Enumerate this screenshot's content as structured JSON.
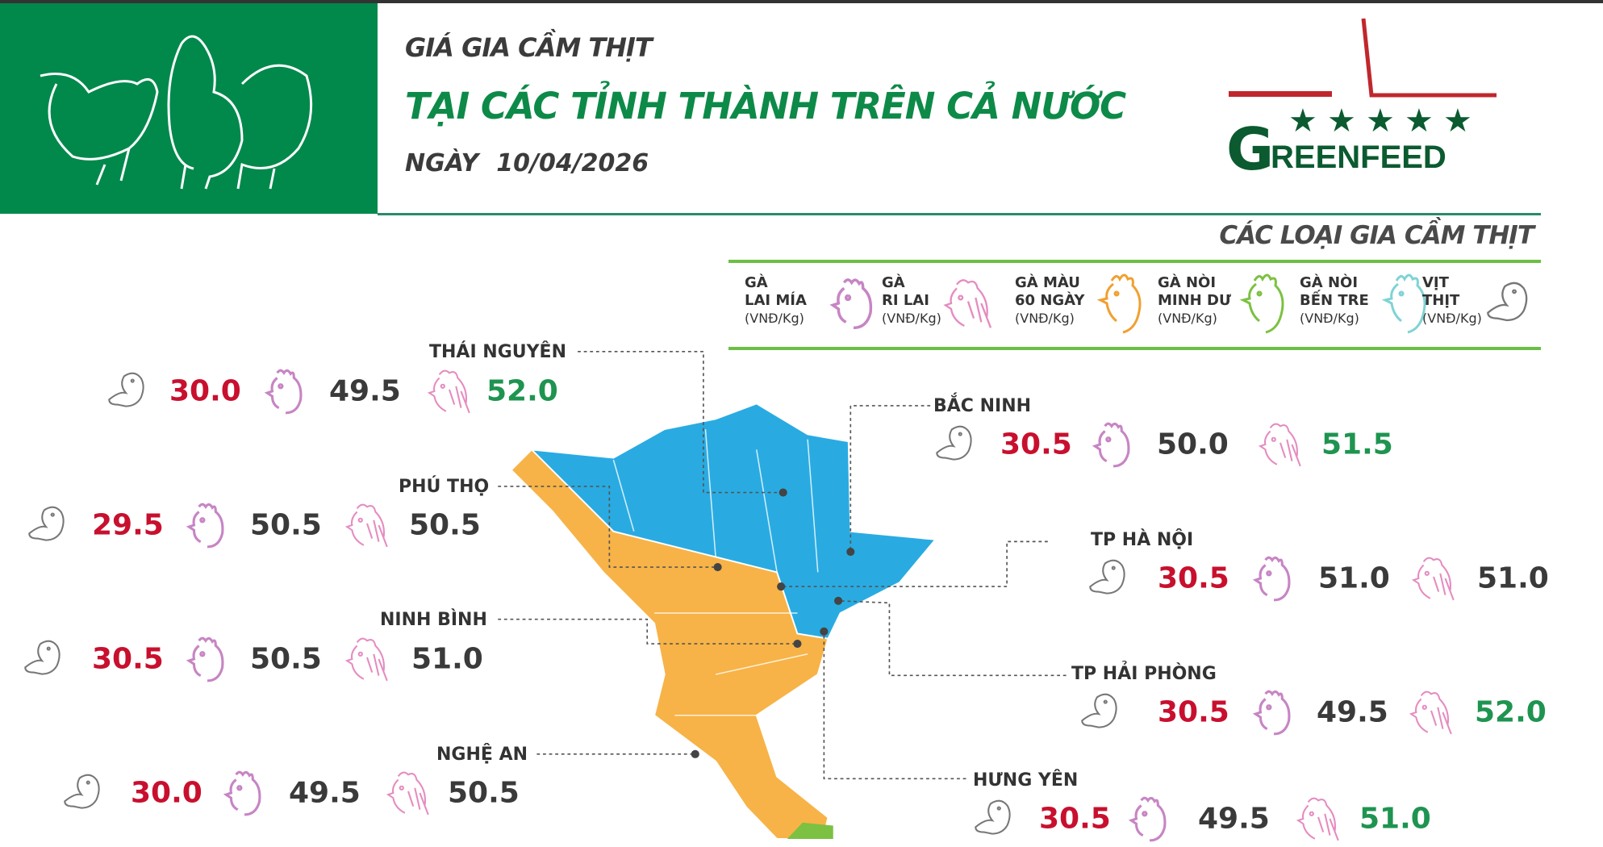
{
  "header": {
    "title_line1": "GIÁ GIA CẦM THỊT",
    "title_line2": "TẠI CÁC TỈNH THÀNH TRÊN CẢ NƯỚC",
    "date_label": "NGÀY",
    "date_value": "10/04/2026",
    "logo_text": "GREENFEED"
  },
  "legend": {
    "title": "CÁC LOẠI GIA CẦM THỊT",
    "items": [
      {
        "line1": "GÀ",
        "line2": "LAI MÍA",
        "unit": "(VNĐ/Kg)",
        "icon": "chicken-lai-mia-icon",
        "color": "#c785c4"
      },
      {
        "line1": "GÀ",
        "line2": "RI LAI",
        "unit": "(VNĐ/Kg)",
        "icon": "chicken-ri-lai-icon",
        "color": "#e58cc0"
      },
      {
        "line1": "GÀ MÀU",
        "line2": "60 NGÀY",
        "unit": "(VNĐ/Kg)",
        "icon": "chicken-mau-icon",
        "color": "#f0a030"
      },
      {
        "line1": "GÀ NÒI",
        "line2": "MINH DƯ",
        "unit": "(VNĐ/Kg)",
        "icon": "chicken-noi-minh-du-icon",
        "color": "#7cc142"
      },
      {
        "line1": "GÀ NÒI",
        "line2": "BẾN TRE",
        "unit": "(VNĐ/Kg)",
        "icon": "chicken-noi-ben-tre-icon",
        "color": "#7fd3d6"
      },
      {
        "line1": "VỊT",
        "line2": "THỊT",
        "unit": "(VNĐ/Kg)",
        "icon": "duck-icon",
        "color": "#888888"
      }
    ]
  },
  "colors": {
    "duck_price": "#c8102e",
    "lai_mia_price": "#3a3a3a",
    "ri_lai_green": "#1e9450",
    "ri_lai_dark": "#3a3a3a",
    "map_north": "#29abe2",
    "map_central": "#f7b347",
    "map_south": "#7cc142"
  },
  "provinces": [
    {
      "name": "THÁI NGUYÊN",
      "vit_thit": "30.0",
      "ga_lai_mia": "49.5",
      "ga_ri_lai": "52.0",
      "ri_highlight": true
    },
    {
      "name": "PHÚ THỌ",
      "vit_thit": "29.5",
      "ga_lai_mia": "50.5",
      "ga_ri_lai": "50.5",
      "ri_highlight": false
    },
    {
      "name": "NINH BÌNH",
      "vit_thit": "30.5",
      "ga_lai_mia": "50.5",
      "ga_ri_lai": "51.0",
      "ri_highlight": false
    },
    {
      "name": "NGHỆ AN",
      "vit_thit": "30.0",
      "ga_lai_mia": "49.5",
      "ga_ri_lai": "50.5",
      "ri_highlight": false
    },
    {
      "name": "BẮC NINH",
      "vit_thit": "30.5",
      "ga_lai_mia": "50.0",
      "ga_ri_lai": "51.5",
      "ri_highlight": true
    },
    {
      "name": "TP HÀ NỘI",
      "vit_thit": "30.5",
      "ga_lai_mia": "51.0",
      "ga_ri_lai": "51.0",
      "ri_highlight": false
    },
    {
      "name": "TP HẢI PHÒNG",
      "vit_thit": "30.5",
      "ga_lai_mia": "49.5",
      "ga_ri_lai": "52.0",
      "ri_highlight": true
    },
    {
      "name": "HƯNG YÊN",
      "vit_thit": "30.5",
      "ga_lai_mia": "49.5",
      "ga_ri_lai": "51.0",
      "ri_highlight": true
    }
  ]
}
